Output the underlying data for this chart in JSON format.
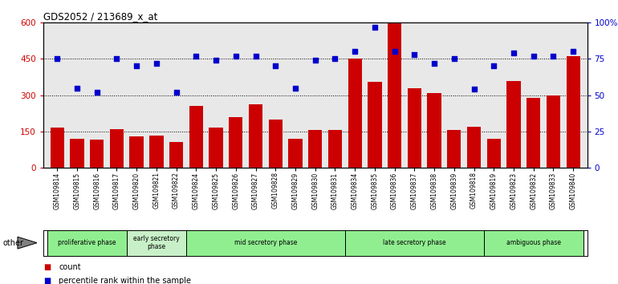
{
  "title": "GDS2052 / 213689_x_at",
  "samples": [
    "GSM109814",
    "GSM109815",
    "GSM109816",
    "GSM109817",
    "GSM109820",
    "GSM109821",
    "GSM109822",
    "GSM109824",
    "GSM109825",
    "GSM109826",
    "GSM109827",
    "GSM109828",
    "GSM109829",
    "GSM109830",
    "GSM109831",
    "GSM109834",
    "GSM109835",
    "GSM109836",
    "GSM109837",
    "GSM109838",
    "GSM109839",
    "GSM109818",
    "GSM109819",
    "GSM109823",
    "GSM109832",
    "GSM109833",
    "GSM109840"
  ],
  "counts": [
    165,
    120,
    117,
    158,
    128,
    133,
    105,
    255,
    165,
    210,
    263,
    200,
    120,
    155,
    155,
    450,
    355,
    600,
    330,
    310,
    155,
    170,
    120,
    360,
    290,
    300,
    460
  ],
  "percentiles": [
    75,
    55,
    52,
    75,
    70,
    72,
    52,
    77,
    74,
    77,
    77,
    70,
    55,
    74,
    75,
    80,
    97,
    80,
    78,
    72,
    75,
    54,
    70,
    79,
    77,
    77,
    80
  ],
  "phase_groups": [
    {
      "label": "proliferative phase",
      "start": 0,
      "end": 4,
      "color": "#90EE90"
    },
    {
      "label": "early secretory\nphase",
      "start": 4,
      "end": 7,
      "color": "#c8f0c8"
    },
    {
      "label": "mid secretory phase",
      "start": 7,
      "end": 15,
      "color": "#90EE90"
    },
    {
      "label": "late secretory phase",
      "start": 15,
      "end": 22,
      "color": "#90EE90"
    },
    {
      "label": "ambiguous phase",
      "start": 22,
      "end": 27,
      "color": "#90EE90"
    }
  ],
  "ylim_left": [
    0,
    600
  ],
  "ylim_right": [
    0,
    100
  ],
  "yticks_left": [
    0,
    150,
    300,
    450,
    600
  ],
  "yticks_right": [
    0,
    25,
    50,
    75,
    100
  ],
  "bar_color": "#cc0000",
  "scatter_color": "#0000cc",
  "plot_bg_color": "#e8e8e8",
  "legend_bar_label": "count",
  "legend_scatter_label": "percentile rank within the sample",
  "other_label": "other"
}
